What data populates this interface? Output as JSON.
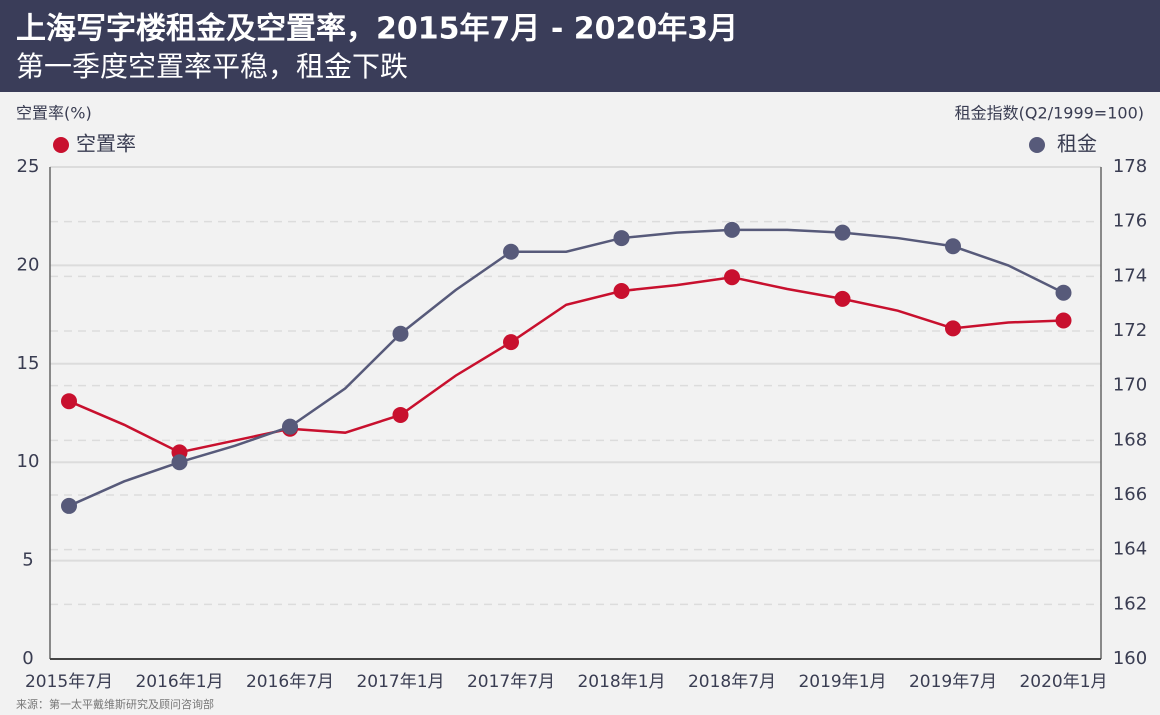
{
  "chart_data": {
    "type": "line",
    "title": "上海写字楼租金及空置率，2015年7月 - 2020年3月",
    "subtitle": "第一季度空置率平稳，租金下跌",
    "y_label": "空置率(%)",
    "y2_label": "租金指数(Q2/1999=100)",
    "source": "来源：第一太平戴维斯研究及顾问咨询部",
    "categories": [
      "2015年7月",
      null,
      "2016年1月",
      null,
      "2016年7月",
      null,
      "2017年1月",
      null,
      "2017年7月",
      null,
      "2018年1月",
      null,
      "2018年7月",
      null,
      "2019年1月",
      null,
      "2019年7月",
      null,
      "2020年1月"
    ],
    "series": [
      {
        "name": "空置率",
        "color": "#c8102e",
        "values": [
          13.1,
          11.9,
          10.5,
          11.1,
          11.7,
          11.5,
          12.4,
          14.4,
          16.1,
          18.0,
          18.7,
          19.0,
          19.4,
          18.8,
          18.3,
          17.7,
          16.8,
          17.1,
          17.2
        ]
      },
      {
        "name": "租金",
        "color": "#575a7a",
        "axis": "y2",
        "values": [
          165.6,
          166.5,
          167.2,
          167.8,
          168.5,
          169.9,
          171.9,
          173.5,
          174.9,
          174.9,
          175.4,
          175.6,
          175.7,
          175.7,
          175.6,
          175.4,
          175.1,
          174.4,
          173.4
        ]
      }
    ],
    "ylim": [
      0,
      25
    ],
    "yticks": [
      0,
      5,
      10,
      15,
      20,
      25
    ],
    "y2lim": [
      160,
      178
    ],
    "y2ticks": [
      160,
      162,
      164,
      166,
      168,
      170,
      172,
      174,
      176,
      178
    ],
    "grid": true
  }
}
